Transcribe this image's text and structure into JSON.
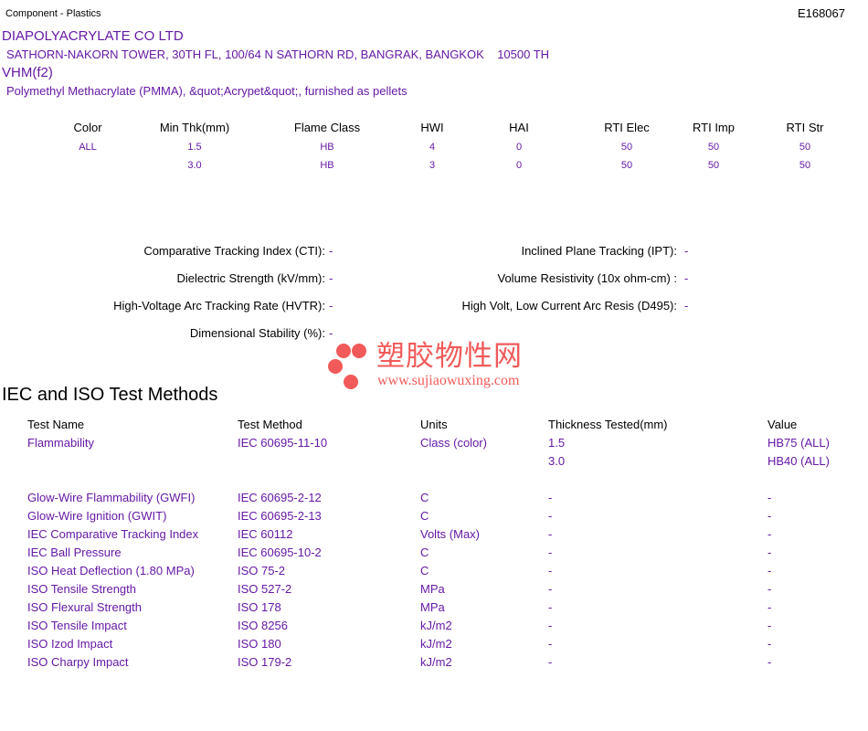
{
  "header": {
    "category": "Component - Plastics",
    "file_number": "E168067"
  },
  "company": {
    "name": "DIAPOLYACRYLATE CO LTD",
    "address": "SATHORN-NAKORN TOWER, 30TH FL, 100/64 N SATHORN RD, BANGRAK, BANGKOK    10500 TH"
  },
  "product": {
    "grade": "VHM(f2)",
    "description": "Polymethyl Methacrylate (PMMA), &quot;Acrypet&quot;, furnished as pellets"
  },
  "ratings": {
    "headers": [
      "Color",
      "Min Thk(mm)",
      "Flame Class",
      "HWI",
      "HAI",
      "RTI Elec",
      "RTI Imp",
      "RTI Str"
    ],
    "rows": [
      [
        "ALL",
        "1.5",
        "HB",
        "4",
        "0",
        "50",
        "50",
        "50"
      ],
      [
        "",
        "3.0",
        "HB",
        "3",
        "0",
        "50",
        "50",
        "50"
      ]
    ]
  },
  "properties": {
    "left": [
      {
        "label": "Comparative Tracking Index (CTI):",
        "value": "-"
      },
      {
        "label": "Dielectric Strength (kV/mm):",
        "value": "-"
      },
      {
        "label": "High-Voltage Arc Tracking Rate (HVTR):",
        "value": "-"
      },
      {
        "label": "Dimensional Stability (%):",
        "value": "-"
      }
    ],
    "right": [
      {
        "label": "Inclined Plane Tracking (IPT):",
        "value": "-"
      },
      {
        "label": "Volume Resistivity (10x ohm-cm) :",
        "value": "-"
      },
      {
        "label": "High Volt, Low Current Arc Resis (D495):",
        "value": "-"
      }
    ]
  },
  "watermark": {
    "text": "塑胶物性网",
    "url": "www.sujiaowuxing.com",
    "color": "#f25a5a"
  },
  "iec": {
    "title": "IEC and ISO Test Methods",
    "headers": [
      "Test Name",
      "Test Method",
      "Units",
      "Thickness Tested(mm)",
      "Value"
    ],
    "rows": [
      [
        "Flammability",
        "IEC 60695-11-10",
        "Class (color)",
        "1.5",
        "HB75 (ALL)"
      ],
      [
        "",
        "",
        "",
        "3.0",
        "HB40 (ALL)"
      ],
      [
        "",
        "",
        "",
        "",
        ""
      ],
      [
        "Glow-Wire Flammability (GWFI)",
        "IEC 60695-2-12",
        "C",
        "-",
        "-"
      ],
      [
        "Glow-Wire Ignition (GWIT)",
        "IEC 60695-2-13",
        "C",
        "-",
        "-"
      ],
      [
        "IEC Comparative Tracking Index",
        "IEC 60112",
        "Volts (Max)",
        "-",
        "-"
      ],
      [
        "IEC Ball Pressure",
        "IEC 60695-10-2",
        "C",
        "-",
        "-"
      ],
      [
        "ISO Heat Deflection (1.80 MPa)",
        "ISO 75-2",
        "C",
        "-",
        "-"
      ],
      [
        "ISO Tensile Strength",
        "ISO 527-2",
        "MPa",
        "-",
        "-"
      ],
      [
        "ISO Flexural Strength",
        "ISO 178",
        "MPa",
        "-",
        "-"
      ],
      [
        "ISO Tensile Impact",
        "ISO 8256",
        "kJ/m2",
        "-",
        "-"
      ],
      [
        "ISO Izod Impact",
        "ISO 180",
        "kJ/m2",
        "-",
        "-"
      ],
      [
        "ISO Charpy Impact",
        "ISO 179-2",
        "kJ/m2",
        "-",
        "-"
      ]
    ]
  }
}
